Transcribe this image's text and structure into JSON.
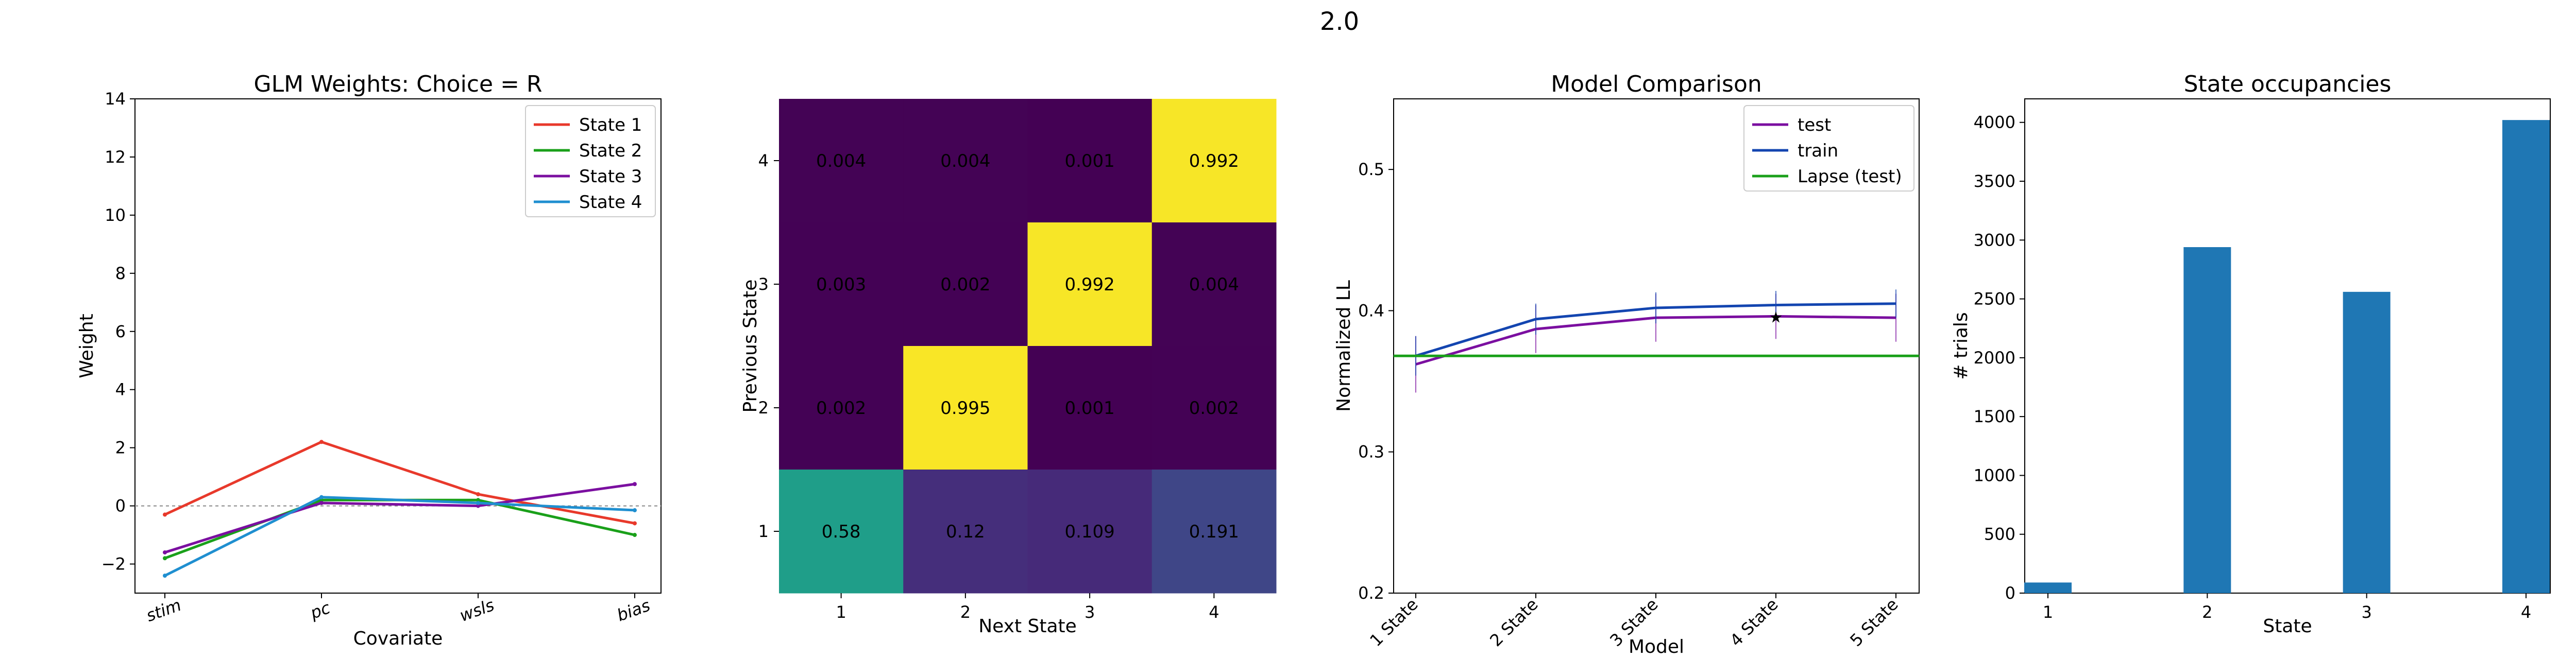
{
  "figure": {
    "suptitle": "2.0"
  },
  "chart_data": [
    {
      "type": "line",
      "title": "GLM Weights: Choice = R",
      "xlabel": "Covariate",
      "ylabel": "Weight",
      "categories": [
        "stim",
        "pc",
        "wsls",
        "bias"
      ],
      "ylim": [
        -3,
        14
      ],
      "yticks": [
        -2,
        0,
        2,
        4,
        6,
        8,
        10,
        12,
        14
      ],
      "ytick_labels": [
        "−2",
        "0",
        "2",
        "4",
        "6",
        "8",
        "10",
        "12",
        "14"
      ],
      "zero_line": true,
      "legend_position": "top-right",
      "series": [
        {
          "name": "State 1",
          "color": "#e8392b",
          "values": [
            -0.3,
            2.2,
            0.4,
            -0.6
          ]
        },
        {
          "name": "State 2",
          "color": "#1aa01a",
          "values": [
            -1.8,
            0.2,
            0.2,
            -1.0
          ]
        },
        {
          "name": "State 3",
          "color": "#7b0fa0",
          "values": [
            -1.6,
            0.1,
            0.0,
            0.75
          ]
        },
        {
          "name": "State 4",
          "color": "#1f8fd0",
          "values": [
            -2.4,
            0.3,
            0.1,
            -0.15
          ]
        }
      ]
    },
    {
      "type": "heatmap",
      "xlabel": "Next State",
      "ylabel": "Previous State",
      "x_ticks": [
        "1",
        "2",
        "3",
        "4"
      ],
      "y_ticks": [
        "1",
        "2",
        "3",
        "4"
      ],
      "colormap": "viridis",
      "rows": [
        {
          "state": "4",
          "values": [
            0.004,
            0.004,
            0.001,
            0.992
          ],
          "labels": [
            "0.004",
            "0.004",
            "0.001",
            "0.992"
          ]
        },
        {
          "state": "3",
          "values": [
            0.003,
            0.002,
            0.992,
            0.004
          ],
          "labels": [
            "0.003",
            "0.002",
            "0.992",
            "0.004"
          ]
        },
        {
          "state": "2",
          "values": [
            0.002,
            0.995,
            0.001,
            0.002
          ],
          "labels": [
            "0.002",
            "0.995",
            "0.001",
            "0.002"
          ]
        },
        {
          "state": "1",
          "values": [
            0.58,
            0.12,
            0.109,
            0.191
          ],
          "labels": [
            "0.58",
            "0.12",
            "0.109",
            "0.191"
          ]
        }
      ]
    },
    {
      "type": "line",
      "title": "Model Comparison",
      "xlabel": "Model",
      "ylabel": "Normalized LL",
      "categories": [
        "1 State",
        "2 State",
        "3 State",
        "4 State",
        "5 State"
      ],
      "ylim": [
        0.2,
        0.55
      ],
      "yticks": [
        0.2,
        0.3,
        0.4,
        0.5
      ],
      "ytick_labels": [
        "0.2",
        "0.3",
        "0.4",
        "0.5"
      ],
      "legend_position": "top-right",
      "series": [
        {
          "name": "test",
          "color": "#7b0fa0",
          "values": [
            0.362,
            0.387,
            0.395,
            0.396,
            0.395
          ],
          "errors": [
            0.02,
            0.017,
            0.017,
            0.016,
            0.017
          ]
        },
        {
          "name": "train",
          "color": "#1345b0",
          "values": [
            0.368,
            0.394,
            0.402,
            0.404,
            0.405
          ],
          "errors": [
            0.014,
            0.011,
            0.011,
            0.01,
            0.01
          ]
        },
        {
          "name": "Lapse (test)",
          "color": "#1aa01a",
          "hline": 0.368
        }
      ],
      "marker": {
        "category": "4 State",
        "value": 0.396,
        "symbol": "★"
      }
    },
    {
      "type": "bar",
      "title": "State occupancies",
      "xlabel": "State",
      "ylabel": "# trials",
      "categories": [
        "1",
        "2",
        "3",
        "4"
      ],
      "values": [
        90,
        2940,
        2560,
        4020
      ],
      "ylim": [
        0,
        4200
      ],
      "yticks": [
        0,
        500,
        1000,
        1500,
        2000,
        2500,
        3000,
        3500,
        4000
      ],
      "ytick_labels": [
        "0",
        "500",
        "1000",
        "1500",
        "2000",
        "2500",
        "3000",
        "3500",
        "4000"
      ],
      "color": "#1f77b4"
    }
  ]
}
